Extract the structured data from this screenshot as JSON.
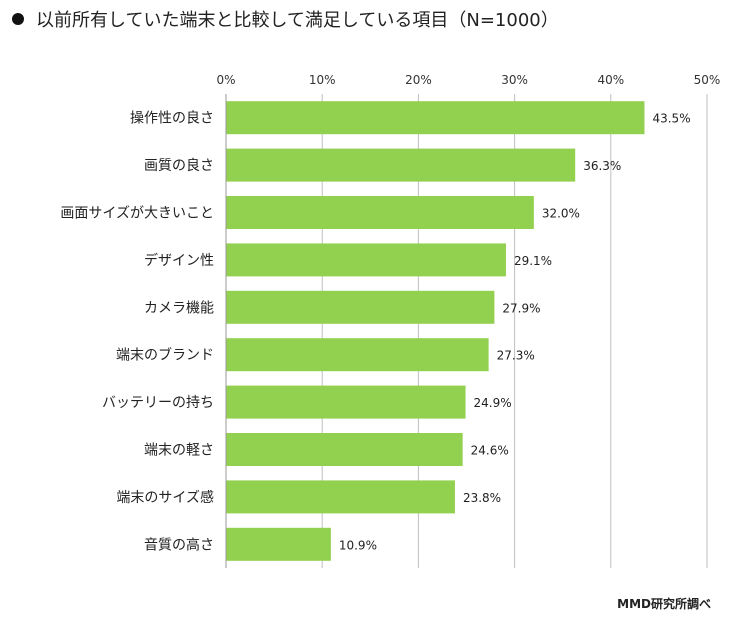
{
  "header": {
    "title": "以前所有していた端末と比較して満足している項目（N=1000）"
  },
  "footer": {
    "source": "MMD研究所調べ"
  },
  "chart_data": {
    "type": "bar",
    "orientation": "horizontal",
    "title": "以前所有していた端末と比較して満足している項目（N=1000）",
    "xlim": [
      0,
      50
    ],
    "ticks": [
      "0%",
      "10%",
      "20%",
      "30%",
      "40%",
      "50%"
    ],
    "tick_values": [
      0,
      10,
      20,
      30,
      40,
      50
    ],
    "axis_position": "top",
    "grid": true,
    "color": "#92D050",
    "categories": [
      "操作性の良さ",
      "画質の良さ",
      "画面サイズが大きいこと",
      "デザイン性",
      "カメラ機能",
      "端末のブランド",
      "バッテリーの持ち",
      "端末の軽さ",
      "端末のサイズ感",
      "音質の高さ"
    ],
    "values": [
      43.5,
      36.3,
      32.0,
      29.1,
      27.9,
      27.3,
      24.9,
      24.6,
      23.8,
      10.9
    ],
    "labels": [
      "43.5%",
      "36.3%",
      "32.0%",
      "29.1%",
      "27.9%",
      "27.3%",
      "24.9%",
      "24.6%",
      "23.8%",
      "10.9%"
    ]
  }
}
